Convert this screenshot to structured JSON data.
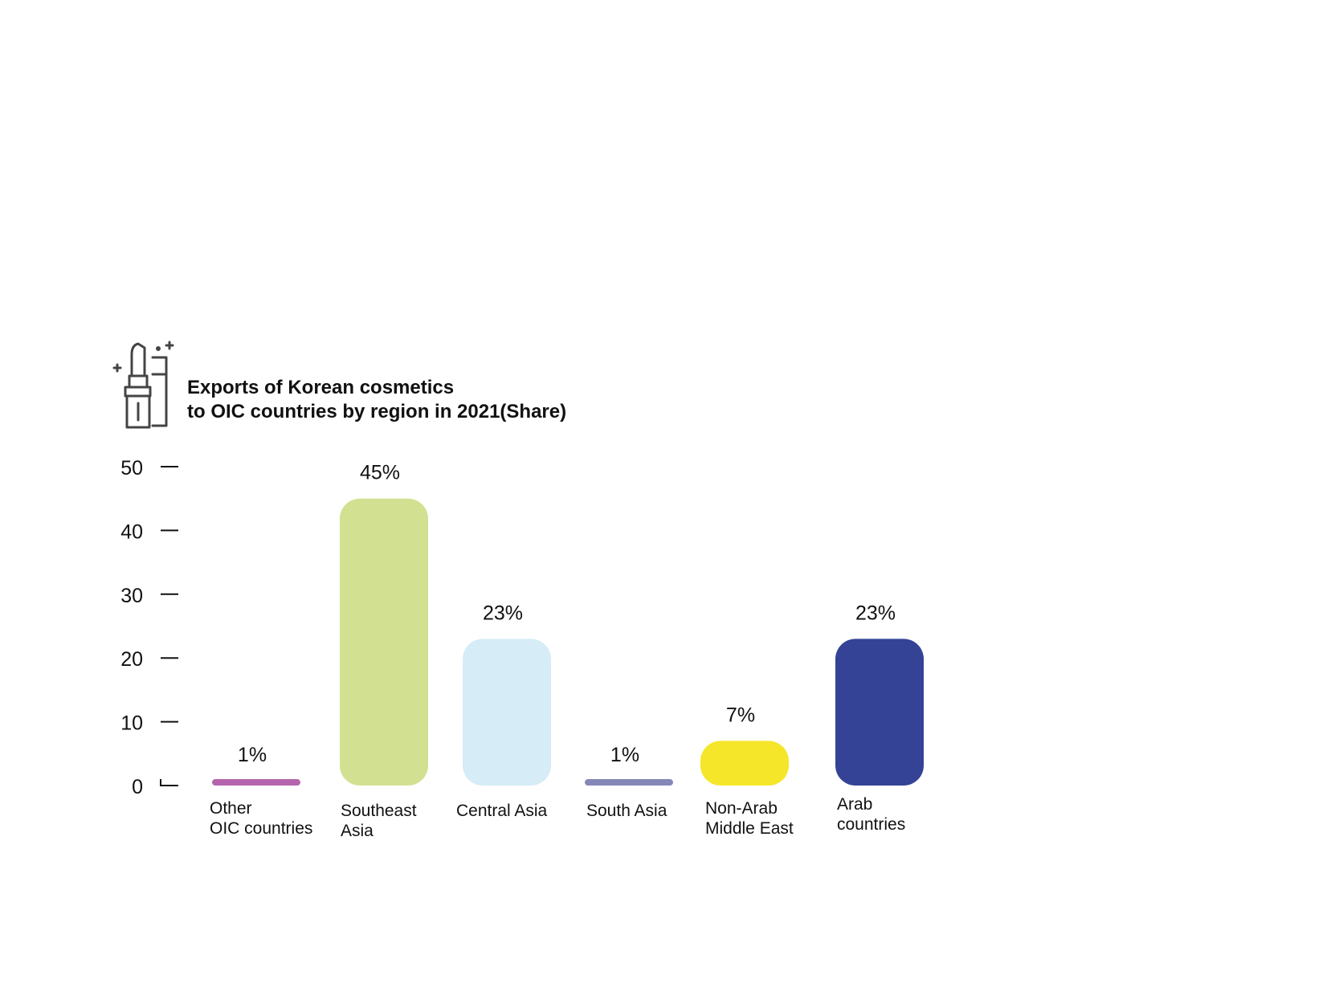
{
  "chart_data": {
    "type": "bar",
    "title_lines": [
      "Exports of Korean cosmetics",
      "to OIC countries by region in 2021(Share)"
    ],
    "categories": [
      [
        "Other",
        "OIC countries"
      ],
      [
        "Southeast",
        "Asia"
      ],
      [
        "Central Asia"
      ],
      [
        "South Asia"
      ],
      [
        "Non-Arab",
        "Middle East"
      ],
      [
        "Arab",
        "countries"
      ]
    ],
    "values": [
      1,
      45,
      23,
      1,
      7,
      23
    ],
    "value_labels": [
      "1%",
      "45%",
      "23%",
      "1%",
      "7%",
      "23%"
    ],
    "colors": [
      "#b565ad",
      "#d2e191",
      "#d6ecf7",
      "#8687b8",
      "#f5e629",
      "#344396"
    ],
    "yticks": [
      "0",
      "10",
      "20",
      "30",
      "40",
      "50"
    ],
    "ylim": [
      0,
      50
    ],
    "grid": false,
    "legend": "none"
  },
  "icon": "lipstick-icon"
}
